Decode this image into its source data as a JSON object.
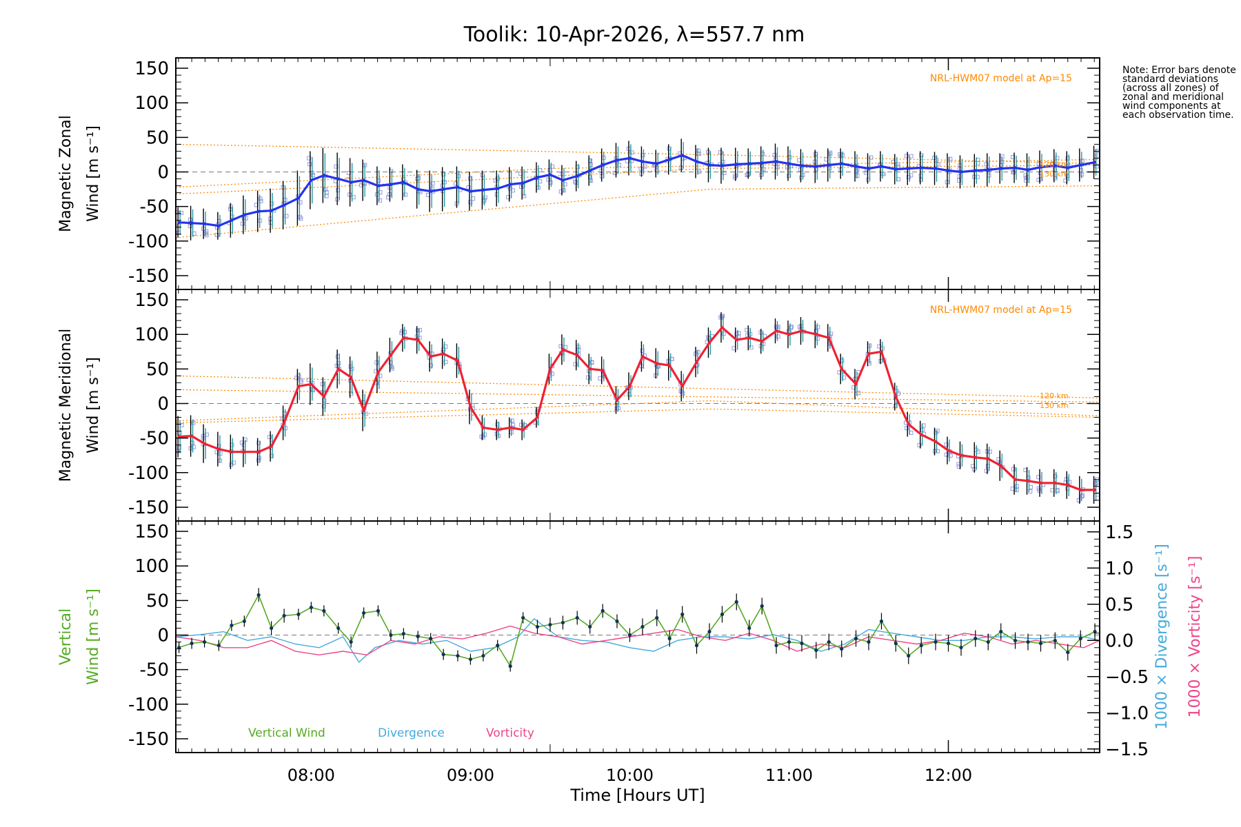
{
  "figure": {
    "title": "Toolik: 10-Apr-2026, λ=557.7 nm",
    "xlabel": "Time [Hours UT]",
    "note": "Note: Error bars denote standard deviations (across all zones) of zonal and meridional wind components at each observation time.",
    "colors": {
      "zonal": "#2233ee",
      "meridional": "#ee2233",
      "vertical": "#55aa22",
      "divergence": "#44aadd",
      "vorticity": "#ee4488",
      "model": "#ff8800",
      "zones": "#9999dd",
      "errorbar_a": "#000000",
      "errorbar_b": "#2299aa"
    }
  },
  "chart_data": [
    {
      "type": "line",
      "name": "zonal",
      "ylabel_top": "Magnetic Zonal",
      "ylabel_bottom": "Wind [m s⁻¹]",
      "model_label": "NRL-HWM07 model at Ap=15",
      "model_tags": [
        "120 km",
        "130 km"
      ],
      "xlim": [
        7.15,
        12.95
      ],
      "ylim": [
        -170,
        165
      ],
      "yticks": [
        150,
        100,
        50,
        0,
        -50,
        -100,
        -150
      ],
      "xticks": [
        "08:00",
        "09:00",
        "10:00",
        "11:00",
        "12:00"
      ],
      "x": [
        7.17,
        7.25,
        7.33,
        7.42,
        7.5,
        7.58,
        7.67,
        7.75,
        7.83,
        7.92,
        8.0,
        8.08,
        8.17,
        8.25,
        8.33,
        8.42,
        8.5,
        8.58,
        8.67,
        8.75,
        8.83,
        8.92,
        9.0,
        9.08,
        9.17,
        9.25,
        9.33,
        9.42,
        9.5,
        9.58,
        9.67,
        9.75,
        9.83,
        9.92,
        10.0,
        10.08,
        10.17,
        10.25,
        10.33,
        10.42,
        10.5,
        10.58,
        10.67,
        10.75,
        10.83,
        10.92,
        11.0,
        11.08,
        11.17,
        11.25,
        11.33,
        11.42,
        11.5,
        11.58,
        11.67,
        11.75,
        11.83,
        11.92,
        12.0,
        12.08,
        12.17,
        12.25,
        12.33,
        12.42,
        12.5,
        12.58,
        12.67,
        12.75,
        12.83,
        12.92
      ],
      "values": [
        -73,
        -74,
        -75,
        -78,
        -70,
        -62,
        -57,
        -56,
        -48,
        -38,
        -12,
        -5,
        -10,
        -15,
        -12,
        -20,
        -18,
        -15,
        -25,
        -28,
        -25,
        -22,
        -28,
        -26,
        -24,
        -18,
        -16,
        -8,
        -4,
        -12,
        -6,
        2,
        10,
        17,
        20,
        15,
        12,
        18,
        24,
        15,
        10,
        9,
        11,
        12,
        13,
        15,
        12,
        9,
        8,
        10,
        12,
        8,
        5,
        8,
        4,
        5,
        6,
        5,
        2,
        0,
        2,
        3,
        5,
        6,
        3,
        7,
        9,
        6,
        10,
        14
      ],
      "errors": [
        22,
        25,
        22,
        20,
        25,
        28,
        30,
        32,
        35,
        40,
        42,
        40,
        38,
        35,
        30,
        28,
        25,
        26,
        28,
        30,
        32,
        30,
        28,
        28,
        26,
        25,
        24,
        22,
        22,
        22,
        22,
        22,
        24,
        25,
        25,
        22,
        20,
        22,
        24,
        24,
        25,
        26,
        24,
        22,
        24,
        26,
        25,
        24,
        24,
        24,
        22,
        22,
        22,
        22,
        22,
        24,
        24,
        24,
        25,
        24,
        24,
        24,
        22,
        22,
        24,
        24,
        24,
        24,
        24,
        24
      ],
      "model_curves": [
        {
          "x": [
            7.15,
            10.5,
            12.95
          ],
          "values": [
            40,
            25,
            12
          ]
        },
        {
          "x": [
            7.15,
            10.5,
            12.95
          ],
          "values": [
            -32,
            5,
            10
          ]
        },
        {
          "x": [
            7.15,
            10.5,
            12.95
          ],
          "values": [
            -95,
            -25,
            -20
          ]
        },
        {
          "x": [
            7.15,
            9.5,
            12.95
          ],
          "values": [
            -22,
            5,
            18
          ]
        }
      ]
    },
    {
      "type": "line",
      "name": "meridional",
      "ylabel_top": "Magnetic Meridional",
      "ylabel_bottom": "Wind [m s⁻¹]",
      "model_label": "NRL-HWM07 model at Ap=15",
      "model_tags": [
        "120 km",
        "130 km"
      ],
      "xlim": [
        7.15,
        12.95
      ],
      "ylim": [
        -170,
        165
      ],
      "yticks": [
        150,
        100,
        50,
        0,
        -50,
        -100,
        -150
      ],
      "xticks": [
        "08:00",
        "09:00",
        "10:00",
        "11:00",
        "12:00"
      ],
      "x": [
        7.17,
        7.25,
        7.33,
        7.42,
        7.5,
        7.58,
        7.67,
        7.75,
        7.83,
        7.92,
        8.0,
        8.08,
        8.17,
        8.25,
        8.33,
        8.42,
        8.5,
        8.58,
        8.67,
        8.75,
        8.83,
        8.92,
        9.0,
        9.08,
        9.17,
        9.25,
        9.33,
        9.42,
        9.5,
        9.58,
        9.67,
        9.75,
        9.83,
        9.92,
        10.0,
        10.08,
        10.17,
        10.25,
        10.33,
        10.42,
        10.5,
        10.58,
        10.67,
        10.75,
        10.83,
        10.92,
        11.0,
        11.08,
        11.17,
        11.25,
        11.33,
        11.42,
        11.5,
        11.58,
        11.67,
        11.75,
        11.83,
        11.92,
        12.0,
        12.08,
        12.17,
        12.25,
        12.33,
        12.42,
        12.5,
        12.58,
        12.67,
        12.75,
        12.83,
        12.92
      ],
      "values": [
        -48,
        -47,
        -58,
        -66,
        -70,
        -70,
        -70,
        -62,
        -28,
        25,
        28,
        10,
        50,
        38,
        -10,
        45,
        70,
        95,
        92,
        68,
        72,
        62,
        -5,
        -35,
        -38,
        -35,
        -38,
        -20,
        50,
        78,
        70,
        50,
        48,
        5,
        25,
        68,
        58,
        55,
        25,
        60,
        88,
        110,
        92,
        95,
        90,
        105,
        100,
        105,
        100,
        95,
        50,
        28,
        72,
        75,
        10,
        -30,
        -45,
        -55,
        -68,
        -75,
        -78,
        -80,
        -90,
        -110,
        -112,
        -115,
        -115,
        -118,
        -125,
        -125
      ],
      "errors": [
        30,
        30,
        28,
        25,
        25,
        22,
        20,
        22,
        25,
        25,
        30,
        28,
        28,
        30,
        30,
        30,
        25,
        20,
        20,
        22,
        22,
        25,
        25,
        18,
        15,
        15,
        15,
        15,
        22,
        22,
        22,
        22,
        20,
        20,
        20,
        22,
        22,
        22,
        22,
        22,
        22,
        22,
        18,
        18,
        18,
        18,
        20,
        20,
        20,
        20,
        22,
        22,
        18,
        18,
        20,
        18,
        20,
        20,
        20,
        20,
        22,
        22,
        22,
        22,
        20,
        20,
        20,
        20,
        20,
        20
      ],
      "model_curves": [
        {
          "x": [
            7.15,
            12.95
          ],
          "values": [
            40,
            8
          ]
        },
        {
          "x": [
            7.15,
            12.95
          ],
          "values": [
            20,
            2
          ]
        },
        {
          "x": [
            7.15,
            10.5,
            12.95
          ],
          "values": [
            -25,
            4,
            -18
          ]
        },
        {
          "x": [
            7.15,
            10.5,
            12.95
          ],
          "values": [
            -28,
            -8,
            -20
          ]
        }
      ]
    },
    {
      "type": "line",
      "name": "vertical_divergence_vorticity",
      "ylabel_top": "Vertical",
      "ylabel_bottom": "Wind [m s⁻¹]",
      "y2label_divergence": "1000 × Divergence [s⁻¹]",
      "y2label_vorticity": "1000 × Vorticity [s⁻¹]",
      "xlim": [
        7.15,
        12.95
      ],
      "ylim": [
        -170,
        165
      ],
      "y2lim": [
        -1.55,
        1.65
      ],
      "yticks": [
        150,
        100,
        50,
        0,
        -50,
        -100,
        -150
      ],
      "y2ticks": [
        "1.5",
        "1.0",
        "0.5",
        "0.0",
        "−0.5",
        "−1.0",
        "−1.5"
      ],
      "xticks": [
        "08:00",
        "09:00",
        "10:00",
        "11:00",
        "12:00"
      ],
      "legend": [
        "Vertical Wind",
        "Divergence",
        "Vorticity"
      ],
      "series": [
        {
          "name": "Vertical Wind",
          "axis": "left",
          "x": [
            7.17,
            7.25,
            7.33,
            7.42,
            7.5,
            7.58,
            7.67,
            7.75,
            7.83,
            7.92,
            8.0,
            8.08,
            8.17,
            8.25,
            8.33,
            8.42,
            8.5,
            8.58,
            8.67,
            8.75,
            8.83,
            8.92,
            9.0,
            9.08,
            9.17,
            9.25,
            9.33,
            9.42,
            9.5,
            9.58,
            9.67,
            9.75,
            9.83,
            9.92,
            10.0,
            10.08,
            10.17,
            10.25,
            10.33,
            10.42,
            10.5,
            10.58,
            10.67,
            10.75,
            10.83,
            10.92,
            11.0,
            11.08,
            11.17,
            11.25,
            11.33,
            11.42,
            11.5,
            11.58,
            11.67,
            11.75,
            11.83,
            11.92,
            12.0,
            12.08,
            12.17,
            12.25,
            12.33,
            12.42,
            12.5,
            12.58,
            12.67,
            12.75,
            12.83,
            12.92
          ],
          "values": [
            -18,
            -12,
            -10,
            -15,
            14,
            20,
            58,
            10,
            28,
            30,
            40,
            35,
            10,
            -10,
            32,
            35,
            0,
            2,
            -2,
            -5,
            -28,
            -30,
            -35,
            -30,
            -15,
            -45,
            25,
            12,
            15,
            18,
            25,
            12,
            35,
            20,
            0,
            12,
            25,
            -5,
            30,
            -15,
            5,
            30,
            48,
            10,
            42,
            -15,
            -10,
            -12,
            -22,
            -10,
            -20,
            -5,
            -10,
            20,
            -12,
            -30,
            -15,
            -10,
            -12,
            -18,
            -5,
            -10,
            5,
            -8,
            -10,
            -12,
            -8,
            -25,
            -5,
            5
          ],
          "errors": [
            8,
            8,
            8,
            8,
            8,
            8,
            10,
            10,
            10,
            8,
            8,
            8,
            8,
            8,
            8,
            8,
            8,
            8,
            8,
            8,
            8,
            8,
            8,
            8,
            8,
            8,
            8,
            10,
            10,
            10,
            10,
            10,
            10,
            10,
            10,
            12,
            12,
            12,
            12,
            12,
            12,
            12,
            12,
            12,
            12,
            12,
            12,
            12,
            12,
            12,
            12,
            12,
            12,
            12,
            12,
            12,
            12,
            12,
            12,
            12,
            12,
            12,
            12,
            12,
            12,
            12,
            12,
            12,
            12,
            12
          ]
        },
        {
          "name": "Divergence",
          "axis": "right",
          "x": [
            7.15,
            7.3,
            7.45,
            7.6,
            7.75,
            7.9,
            8.05,
            8.2,
            8.3,
            8.4,
            8.55,
            8.7,
            8.85,
            9.0,
            9.15,
            9.3,
            9.4,
            9.55,
            9.7,
            9.85,
            10.0,
            10.15,
            10.3,
            10.45,
            10.6,
            10.75,
            10.9,
            11.05,
            11.2,
            11.35,
            11.5,
            11.65,
            11.8,
            11.95,
            12.1,
            12.25,
            12.4,
            12.55,
            12.7,
            12.85,
            12.95
          ],
          "values": [
            0.05,
            0.08,
            0.12,
            0.0,
            0.05,
            -0.05,
            -0.1,
            0.05,
            -0.3,
            -0.1,
            0.0,
            -0.05,
            0.0,
            -0.15,
            -0.1,
            0.05,
            0.3,
            0.05,
            0.0,
            -0.02,
            -0.1,
            -0.15,
            0.0,
            0.05,
            0.05,
            0.02,
            0.08,
            0.0,
            -0.15,
            -0.05,
            0.15,
            0.1,
            0.05,
            0.0,
            0.0,
            0.05,
            0.05,
            0.02,
            0.05,
            0.05,
            0.0
          ]
        },
        {
          "name": "Vorticity",
          "axis": "right",
          "x": [
            7.15,
            7.3,
            7.45,
            7.6,
            7.75,
            7.9,
            8.05,
            8.2,
            8.35,
            8.5,
            8.65,
            8.8,
            8.95,
            9.1,
            9.25,
            9.4,
            9.55,
            9.7,
            9.85,
            10.0,
            10.15,
            10.3,
            10.45,
            10.6,
            10.75,
            10.9,
            11.05,
            11.2,
            11.35,
            11.5,
            11.65,
            11.8,
            11.95,
            12.1,
            12.25,
            12.4,
            12.55,
            12.7,
            12.85,
            12.95
          ],
          "values": [
            0.05,
            0.0,
            -0.1,
            -0.1,
            0.0,
            -0.15,
            -0.2,
            -0.15,
            -0.2,
            0.0,
            -0.05,
            0.05,
            0.02,
            0.1,
            0.2,
            0.1,
            0.05,
            -0.05,
            0.0,
            0.05,
            0.1,
            0.15,
            0.05,
            0.0,
            0.1,
            0.0,
            -0.15,
            -0.05,
            -0.1,
            0.05,
            0.0,
            -0.05,
            0.0,
            0.1,
            0.05,
            -0.05,
            0.0,
            -0.05,
            -0.1,
            0.0
          ]
        }
      ]
    }
  ]
}
